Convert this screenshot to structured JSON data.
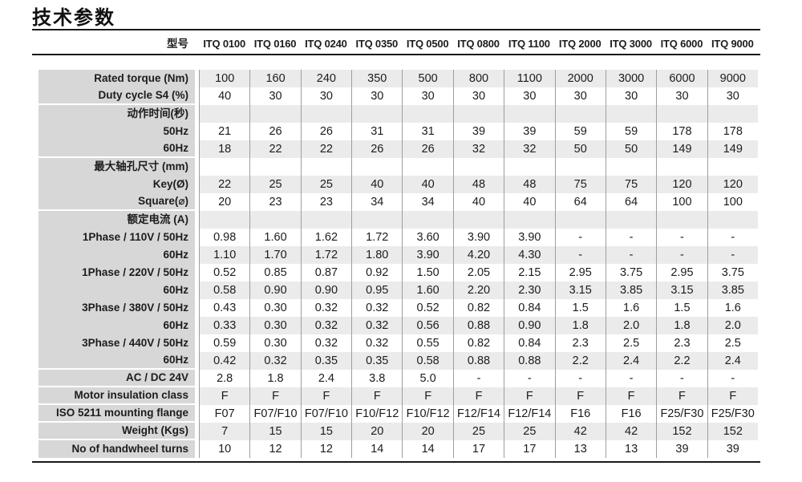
{
  "title": "技术参数",
  "colors": {
    "label_bg": "#d7d7d7",
    "row_stripe": "#ebebeb",
    "rule": "#1a1a1a",
    "column_line": "#9e9e9e",
    "text": "#1c1c1c"
  },
  "table": {
    "model_label": "型号",
    "models": [
      "ITQ 0100",
      "ITQ 0160",
      "ITQ 0240",
      "ITQ 0350",
      "ITQ 0500",
      "ITQ 0800",
      "ITQ 1100",
      "ITQ 2000",
      "ITQ 3000",
      "ITQ 6000",
      "ITQ 9000"
    ],
    "rows": [
      {
        "label": "Rated torque (Nm)",
        "section": false,
        "group_end": false,
        "values": [
          "100",
          "160",
          "240",
          "350",
          "500",
          "800",
          "1100",
          "2000",
          "3000",
          "6000",
          "9000"
        ]
      },
      {
        "label": "Duty cycle S4 (%)",
        "section": false,
        "group_end": true,
        "values": [
          "40",
          "30",
          "30",
          "30",
          "30",
          "30",
          "30",
          "30",
          "30",
          "30",
          "30"
        ]
      },
      {
        "label": "动作时间(秒)",
        "section": true,
        "group_end": false,
        "values": []
      },
      {
        "label": "50Hz",
        "section": false,
        "group_end": false,
        "values": [
          "21",
          "26",
          "26",
          "31",
          "31",
          "39",
          "39",
          "59",
          "59",
          "178",
          "178"
        ]
      },
      {
        "label": "60Hz",
        "section": false,
        "group_end": true,
        "values": [
          "18",
          "22",
          "22",
          "26",
          "26",
          "32",
          "32",
          "50",
          "50",
          "149",
          "149"
        ]
      },
      {
        "label": "最大轴孔尺寸 (mm)",
        "section": true,
        "group_end": false,
        "values": []
      },
      {
        "label": "Key(Ø)",
        "section": false,
        "group_end": false,
        "values": [
          "22",
          "25",
          "25",
          "40",
          "40",
          "48",
          "48",
          "75",
          "75",
          "120",
          "120"
        ]
      },
      {
        "label": "Square(⌀)",
        "section": false,
        "group_end": true,
        "values": [
          "20",
          "23",
          "23",
          "34",
          "34",
          "40",
          "40",
          "64",
          "64",
          "100",
          "100"
        ]
      },
      {
        "label": "额定电流 (A)",
        "section": true,
        "group_end": false,
        "values": []
      },
      {
        "label": "1Phase / 110V / 50Hz",
        "section": false,
        "group_end": false,
        "values": [
          "0.98",
          "1.60",
          "1.62",
          "1.72",
          "3.60",
          "3.90",
          "3.90",
          "-",
          "-",
          "-",
          "-"
        ]
      },
      {
        "label": "60Hz",
        "section": false,
        "group_end": false,
        "values": [
          "1.10",
          "1.70",
          "1.72",
          "1.80",
          "3.90",
          "4.20",
          "4.30",
          "-",
          "-",
          "-",
          "-"
        ]
      },
      {
        "label": "1Phase / 220V / 50Hz",
        "section": false,
        "group_end": false,
        "values": [
          "0.52",
          "0.85",
          "0.87",
          "0.92",
          "1.50",
          "2.05",
          "2.15",
          "2.95",
          "3.75",
          "2.95",
          "3.75"
        ]
      },
      {
        "label": "60Hz",
        "section": false,
        "group_end": false,
        "values": [
          "0.58",
          "0.90",
          "0.90",
          "0.95",
          "1.60",
          "2.20",
          "2.30",
          "3.15",
          "3.85",
          "3.15",
          "3.85"
        ]
      },
      {
        "label": "3Phase / 380V / 50Hz",
        "section": false,
        "group_end": false,
        "values": [
          "0.43",
          "0.30",
          "0.32",
          "0.32",
          "0.52",
          "0.82",
          "0.84",
          "1.5",
          "1.6",
          "1.5",
          "1.6"
        ]
      },
      {
        "label": "60Hz",
        "section": false,
        "group_end": false,
        "values": [
          "0.33",
          "0.30",
          "0.32",
          "0.32",
          "0.56",
          "0.88",
          "0.90",
          "1.8",
          "2.0",
          "1.8",
          "2.0"
        ]
      },
      {
        "label": "3Phase / 440V / 50Hz",
        "section": false,
        "group_end": false,
        "values": [
          "0.59",
          "0.30",
          "0.32",
          "0.32",
          "0.55",
          "0.82",
          "0.84",
          "2.3",
          "2.5",
          "2.3",
          "2.5"
        ]
      },
      {
        "label": "60Hz",
        "section": false,
        "group_end": true,
        "values": [
          "0.42",
          "0.32",
          "0.35",
          "0.35",
          "0.58",
          "0.88",
          "0.88",
          "2.2",
          "2.4",
          "2.2",
          "2.4"
        ]
      },
      {
        "label": "AC / DC 24V",
        "section": false,
        "group_end": true,
        "values": [
          "2.8",
          "1.8",
          "2.4",
          "3.8",
          "5.0",
          "-",
          "-",
          "-",
          "-",
          "-",
          "-"
        ]
      },
      {
        "label": "Motor insulation class",
        "section": false,
        "group_end": true,
        "values": [
          "F",
          "F",
          "F",
          "F",
          "F",
          "F",
          "F",
          "F",
          "F",
          "F",
          "F"
        ]
      },
      {
        "label": "ISO 5211 mounting flange",
        "section": false,
        "group_end": true,
        "values": [
          "F07",
          "F07/F10",
          "F07/F10",
          "F10/F12",
          "F10/F12",
          "F12/F14",
          "F12/F14",
          "F16",
          "F16",
          "F25/F30",
          "F25/F30"
        ]
      },
      {
        "label": "Weight (Kgs)",
        "section": false,
        "group_end": true,
        "values": [
          "7",
          "15",
          "15",
          "20",
          "20",
          "25",
          "25",
          "42",
          "42",
          "152",
          "152"
        ]
      },
      {
        "label": "No of handwheel turns",
        "section": false,
        "group_end": false,
        "values": [
          "10",
          "12",
          "12",
          "14",
          "14",
          "17",
          "17",
          "13",
          "13",
          "39",
          "39"
        ]
      }
    ]
  }
}
